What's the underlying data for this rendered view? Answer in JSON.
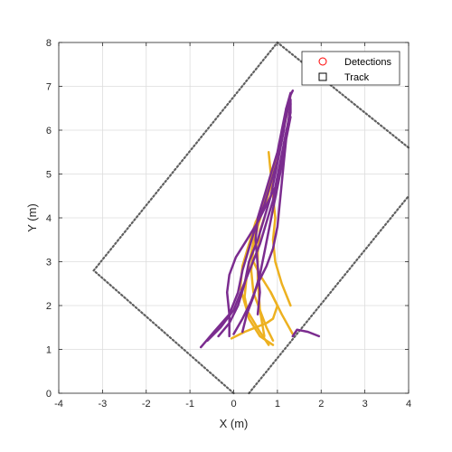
{
  "chart_data": {
    "type": "line",
    "xlabel": "X (m)",
    "ylabel": "Y (m)",
    "xlim": [
      -4,
      4
    ],
    "ylim": [
      0,
      8
    ],
    "xticks": [
      "-4",
      "-3",
      "-2",
      "-1",
      "0",
      "1",
      "2",
      "3",
      "4"
    ],
    "yticks": [
      "0",
      "1",
      "2",
      "3",
      "4",
      "5",
      "6",
      "7",
      "8"
    ],
    "grid": true,
    "legend": {
      "placement": "top-right",
      "entries": [
        {
          "label": "Detections",
          "marker": "circle",
          "color": "#ff0000"
        },
        {
          "label": "Track",
          "marker": "square",
          "color": "#000000"
        }
      ]
    },
    "coverage_boundary": {
      "style": "dotted",
      "color": "#606060",
      "points": [
        [
          0,
          0
        ],
        [
          -3.2,
          2.8
        ],
        [
          1.0,
          8.0
        ],
        [
          4.0,
          5.6
        ]
      ],
      "points2": [
        [
          0.35,
          0
        ],
        [
          4.0,
          4.5
        ]
      ]
    },
    "colors": {
      "track_a": "#7b2c8f",
      "track_b": "#edb120",
      "grid": "#dcdcdc",
      "axis": "#262626"
    },
    "series": [
      {
        "color": "#edb120",
        "points": [
          [
            0.9,
            1.2
          ],
          [
            0.75,
            1.5
          ],
          [
            0.6,
            1.9
          ],
          [
            0.45,
            2.3
          ],
          [
            0.4,
            2.8
          ],
          [
            0.45,
            3.3
          ],
          [
            0.55,
            3.8
          ],
          [
            0.7,
            4.3
          ],
          [
            0.85,
            4.8
          ],
          [
            1.0,
            5.3
          ],
          [
            1.1,
            5.8
          ],
          [
            1.2,
            6.3
          ],
          [
            1.3,
            6.8
          ]
        ]
      },
      {
        "color": "#edb120",
        "points": [
          [
            0.9,
            1.1
          ],
          [
            0.6,
            1.3
          ],
          [
            0.35,
            1.7
          ],
          [
            0.25,
            2.2
          ],
          [
            0.3,
            2.7
          ],
          [
            0.4,
            3.2
          ],
          [
            0.5,
            3.7
          ],
          [
            0.65,
            4.2
          ],
          [
            0.8,
            4.7
          ],
          [
            0.95,
            5.2
          ],
          [
            1.05,
            5.7
          ]
        ]
      },
      {
        "color": "#edb120",
        "points": [
          [
            1.3,
            2.0
          ],
          [
            1.1,
            2.5
          ],
          [
            0.95,
            3.0
          ],
          [
            0.9,
            3.5
          ],
          [
            0.95,
            4.0
          ],
          [
            0.9,
            4.5
          ],
          [
            0.85,
            5.0
          ],
          [
            0.8,
            5.5
          ]
        ]
      },
      {
        "color": "#edb120",
        "points": [
          [
            0.8,
            1.1
          ],
          [
            0.6,
            1.4
          ],
          [
            0.3,
            1.9
          ],
          [
            0.15,
            2.4
          ],
          [
            0.2,
            2.9
          ],
          [
            0.35,
            3.4
          ],
          [
            0.5,
            3.9
          ],
          [
            0.75,
            4.4
          ],
          [
            0.9,
            4.9
          ]
        ]
      },
      {
        "color": "#edb120",
        "points": [
          [
            1.35,
            1.35
          ],
          [
            1.1,
            1.8
          ],
          [
            0.85,
            2.3
          ],
          [
            0.6,
            2.7
          ],
          [
            0.45,
            3.0
          ]
        ]
      },
      {
        "color": "#edb120",
        "points": [
          [
            -0.05,
            1.25
          ],
          [
            0.25,
            1.4
          ],
          [
            0.5,
            1.5
          ],
          [
            0.75,
            1.6
          ],
          [
            0.9,
            1.7
          ],
          [
            1.0,
            2.0
          ],
          [
            0.85,
            2.3
          ]
        ]
      },
      {
        "color": "#edb120",
        "points": [
          [
            0.7,
            1.3
          ],
          [
            0.6,
            1.9
          ],
          [
            0.55,
            2.6
          ],
          [
            0.55,
            3.2
          ],
          [
            0.6,
            3.7
          ],
          [
            0.7,
            4.0
          ]
        ]
      },
      {
        "color": "#7b2c8f",
        "points": [
          [
            -0.75,
            1.05
          ],
          [
            -0.45,
            1.4
          ],
          [
            -0.1,
            1.8
          ],
          [
            0.1,
            2.3
          ],
          [
            0.2,
            2.8
          ],
          [
            0.35,
            3.3
          ],
          [
            0.5,
            3.8
          ],
          [
            0.7,
            4.3
          ],
          [
            0.85,
            4.8
          ],
          [
            1.0,
            5.3
          ],
          [
            1.1,
            5.8
          ],
          [
            1.2,
            6.3
          ],
          [
            1.3,
            6.8
          ],
          [
            1.35,
            6.9
          ]
        ]
      },
      {
        "color": "#7b2c8f",
        "points": [
          [
            -0.6,
            1.2
          ],
          [
            -0.3,
            1.5
          ],
          [
            0.0,
            1.9
          ],
          [
            0.2,
            2.4
          ],
          [
            0.4,
            2.9
          ],
          [
            0.6,
            3.4
          ],
          [
            0.75,
            3.9
          ],
          [
            0.9,
            4.4
          ],
          [
            1.0,
            4.9
          ],
          [
            1.1,
            5.4
          ],
          [
            1.2,
            5.9
          ],
          [
            1.3,
            6.4
          ],
          [
            1.3,
            6.7
          ]
        ]
      },
      {
        "color": "#7b2c8f",
        "points": [
          [
            -0.35,
            1.3
          ],
          [
            -0.1,
            1.6
          ],
          [
            0.1,
            2.0
          ],
          [
            0.25,
            2.5
          ],
          [
            0.35,
            3.0
          ],
          [
            0.55,
            3.5
          ],
          [
            0.7,
            4.0
          ],
          [
            0.85,
            4.5
          ],
          [
            0.95,
            5.0
          ],
          [
            1.05,
            5.5
          ],
          [
            1.15,
            6.0
          ],
          [
            1.2,
            6.5
          ]
        ]
      },
      {
        "color": "#7b2c8f",
        "points": [
          [
            0.2,
            1.4
          ],
          [
            0.3,
            1.8
          ],
          [
            0.45,
            2.2
          ],
          [
            0.6,
            2.7
          ],
          [
            0.7,
            3.2
          ],
          [
            0.8,
            3.7
          ],
          [
            0.9,
            4.2
          ],
          [
            1.0,
            4.7
          ],
          [
            1.1,
            5.2
          ],
          [
            1.15,
            5.7
          ],
          [
            1.25,
            6.2
          ],
          [
            1.3,
            6.6
          ]
        ]
      },
      {
        "color": "#7b2c8f",
        "points": [
          [
            -0.1,
            1.3
          ],
          [
            -0.1,
            1.8
          ],
          [
            -0.15,
            2.3
          ],
          [
            -0.1,
            2.7
          ],
          [
            0.05,
            3.1
          ],
          [
            0.3,
            3.5
          ],
          [
            0.55,
            3.9
          ],
          [
            0.75,
            4.3
          ],
          [
            0.95,
            4.7
          ],
          [
            1.05,
            5.2
          ],
          [
            1.15,
            5.7
          ],
          [
            1.25,
            6.2
          ]
        ]
      },
      {
        "color": "#7b2c8f",
        "points": [
          [
            0.0,
            1.35
          ],
          [
            0.2,
            1.7
          ],
          [
            0.4,
            2.1
          ],
          [
            0.55,
            2.5
          ],
          [
            0.75,
            2.9
          ],
          [
            0.9,
            3.3
          ],
          [
            1.0,
            3.8
          ],
          [
            1.05,
            4.3
          ],
          [
            1.1,
            4.8
          ],
          [
            1.15,
            5.3
          ],
          [
            1.2,
            5.8
          ],
          [
            1.3,
            6.3
          ]
        ]
      },
      {
        "color": "#7b2c8f",
        "points": [
          [
            1.35,
            1.3
          ],
          [
            1.45,
            1.45
          ],
          [
            1.7,
            1.4
          ],
          [
            1.95,
            1.3
          ]
        ]
      },
      {
        "color": "#7b2c8f",
        "points": [
          [
            0.55,
            1.8
          ],
          [
            0.6,
            2.3
          ],
          [
            0.55,
            2.9
          ],
          [
            0.5,
            3.5
          ],
          [
            0.55,
            4.0
          ],
          [
            0.7,
            4.5
          ],
          [
            0.85,
            5.0
          ],
          [
            1.0,
            5.5
          ],
          [
            1.1,
            6.0
          ],
          [
            1.2,
            6.5
          ],
          [
            1.3,
            6.85
          ]
        ]
      }
    ]
  }
}
